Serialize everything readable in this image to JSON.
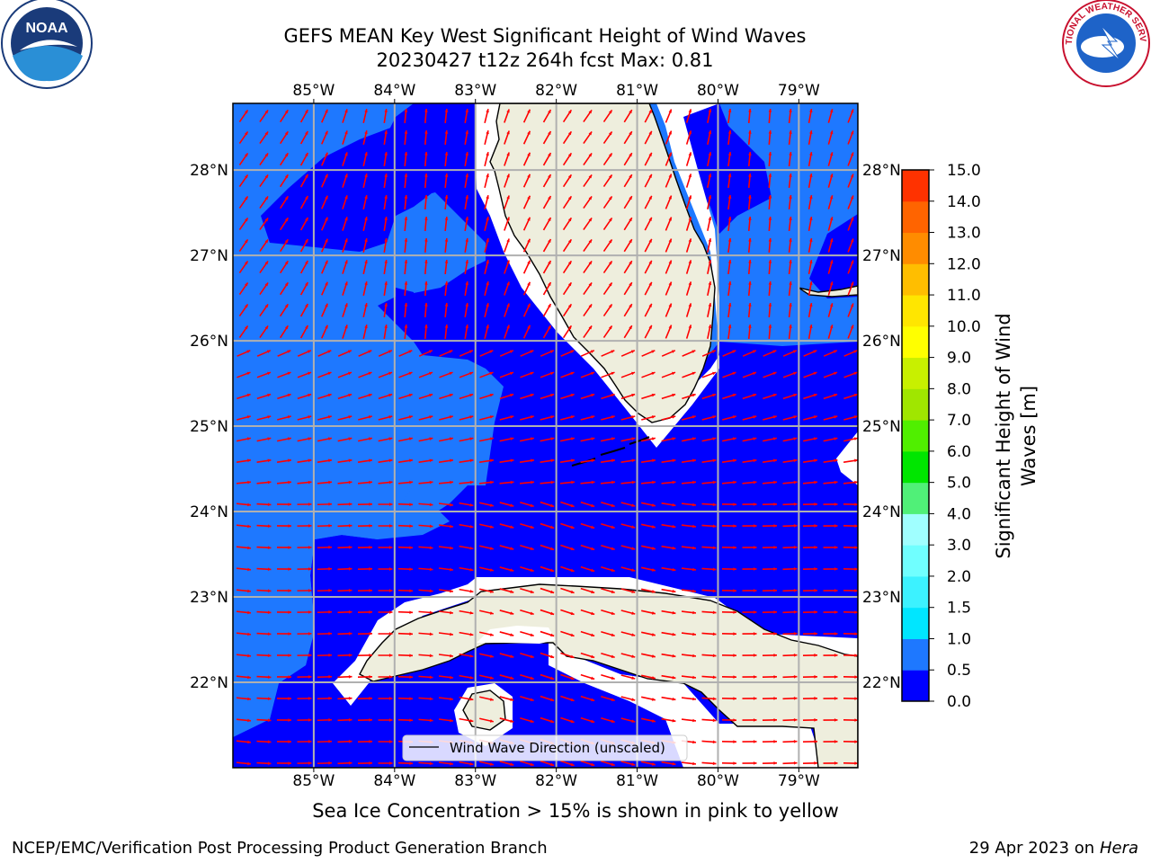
{
  "title": {
    "line1": "GEFS MEAN Key West Significant Height of Wind Waves",
    "line2": "20230427 t12z 264h fcst   Max: 0.81"
  },
  "map": {
    "lon_range": [
      -86.0,
      -78.27
    ],
    "lat_range": [
      21.0,
      28.78
    ],
    "lon_ticks": [
      "85°W",
      "84°W",
      "83°W",
      "82°W",
      "81°W",
      "80°W",
      "79°W"
    ],
    "lon_values": [
      -85,
      -84,
      -83,
      -82,
      -81,
      -80,
      -79
    ],
    "lat_ticks": [
      "22°N",
      "23°N",
      "24°N",
      "25°N",
      "26°N",
      "27°N",
      "28°N"
    ],
    "lat_values": [
      22,
      23,
      24,
      25,
      26,
      27,
      28
    ],
    "grid": true,
    "colors": {
      "ocean_low": "#0000ff",
      "ocean_mid": "#1e78ff",
      "land": "#eeeedd",
      "coast": "#000000",
      "arrow": "#ff0000",
      "grid": "#b0b0b0"
    },
    "legend": {
      "label": "Wind Wave Direction (unscaled)",
      "placement": "lower-center"
    }
  },
  "colorbar": {
    "label_line1": "Significant Height of Wind",
    "label_line2": "Waves [m]",
    "ticks": [
      "0.0",
      "0.5",
      "1.0",
      "1.5",
      "2.0",
      "3.0",
      "4.0",
      "5.0",
      "6.0",
      "7.0",
      "8.0",
      "9.0",
      "10.0",
      "11.0",
      "12.0",
      "13.0",
      "14.0",
      "15.0"
    ],
    "colors": [
      "#0000ff",
      "#1e78ff",
      "#00e6ff",
      "#3cf2ff",
      "#70ffff",
      "#a0ffff",
      "#50f078",
      "#00e600",
      "#50ef00",
      "#a0e600",
      "#c8f000",
      "#ffff00",
      "#ffe600",
      "#ffbe00",
      "#ff8c00",
      "#ff6400",
      "#ff3200",
      "#ff0000"
    ]
  },
  "logos": {
    "noaa": {
      "text": "NOAA"
    },
    "nws": {
      "text": "NATIONAL WEATHER SERVICE"
    }
  },
  "subtitle": "Sea Ice Concentration > 15% is shown in pink to yellow",
  "footer": {
    "credit": "NCEP/EMC/Verification Post Processing Product Generation Branch",
    "date_prefix": "29 Apr 2023 on ",
    "date_host": "Hera"
  }
}
